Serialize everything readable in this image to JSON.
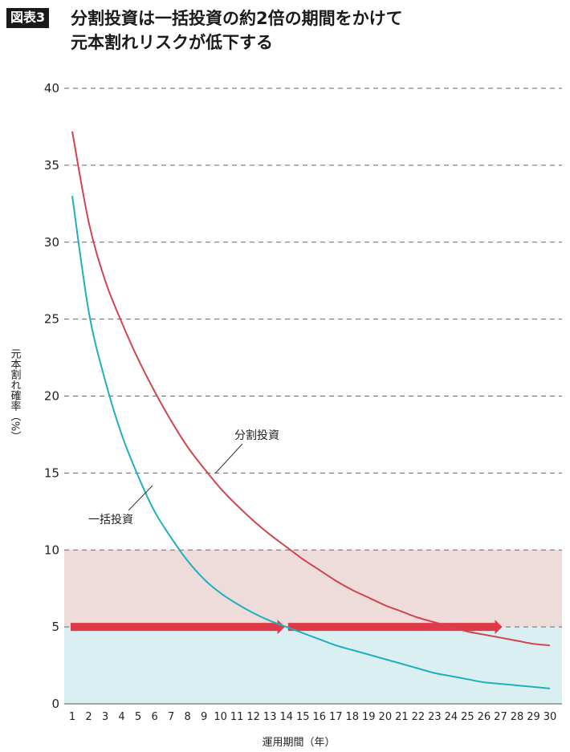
{
  "header": {
    "badge": "図表3",
    "title_line1": "分割投資は一括投資の約2倍の期間をかけて",
    "title_line2": "元本割れリスクが低下する"
  },
  "chart_data": {
    "type": "line",
    "xlabel": "運用期間（年）",
    "ylabel": "元本割れ確率（%）",
    "xlim": [
      1,
      30
    ],
    "ylim": [
      0,
      40
    ],
    "x_ticks": [
      1,
      2,
      3,
      4,
      5,
      6,
      7,
      8,
      9,
      10,
      11,
      12,
      13,
      14,
      15,
      16,
      17,
      18,
      19,
      20,
      21,
      22,
      23,
      24,
      25,
      26,
      27,
      28,
      29,
      30
    ],
    "y_ticks": [
      0,
      5,
      10,
      15,
      20,
      25,
      30,
      35,
      40
    ],
    "grid": "horizontal-dashed",
    "x": [
      1,
      2,
      3,
      4,
      5,
      6,
      7,
      8,
      9,
      10,
      11,
      12,
      13,
      14,
      15,
      16,
      17,
      18,
      19,
      20,
      21,
      22,
      23,
      24,
      25,
      26,
      27,
      28,
      29,
      30
    ],
    "series": [
      {
        "name": "分割投資",
        "color": "#d1454f",
        "values": [
          37.2,
          31.3,
          27.5,
          24.8,
          22.4,
          20.3,
          18.4,
          16.7,
          15.3,
          14.0,
          12.9,
          11.9,
          11.0,
          10.2,
          9.4,
          8.7,
          8.0,
          7.4,
          6.9,
          6.4,
          6.0,
          5.6,
          5.3,
          5.0,
          4.7,
          4.5,
          4.3,
          4.1,
          3.9,
          3.8
        ]
      },
      {
        "name": "一括投資",
        "color": "#1fb0bb",
        "values": [
          33.0,
          25.5,
          21.0,
          17.5,
          14.8,
          12.5,
          10.8,
          9.3,
          8.1,
          7.2,
          6.5,
          5.9,
          5.4,
          5.0,
          4.6,
          4.2,
          3.8,
          3.5,
          3.2,
          2.9,
          2.6,
          2.3,
          2.0,
          1.8,
          1.6,
          1.4,
          1.3,
          1.2,
          1.1,
          1.0
        ]
      }
    ],
    "bands": [
      {
        "from": 5,
        "to": 10,
        "color": "#eedcdb"
      },
      {
        "from": 0,
        "to": 5,
        "color": "#daeff2"
      }
    ],
    "arrows": [
      {
        "y": 5,
        "x_from": 1,
        "x_to": 13.9,
        "color": "#e03a48"
      },
      {
        "y": 5,
        "x_from": 14.2,
        "x_to": 27.1,
        "color": "#e03a48"
      }
    ]
  }
}
